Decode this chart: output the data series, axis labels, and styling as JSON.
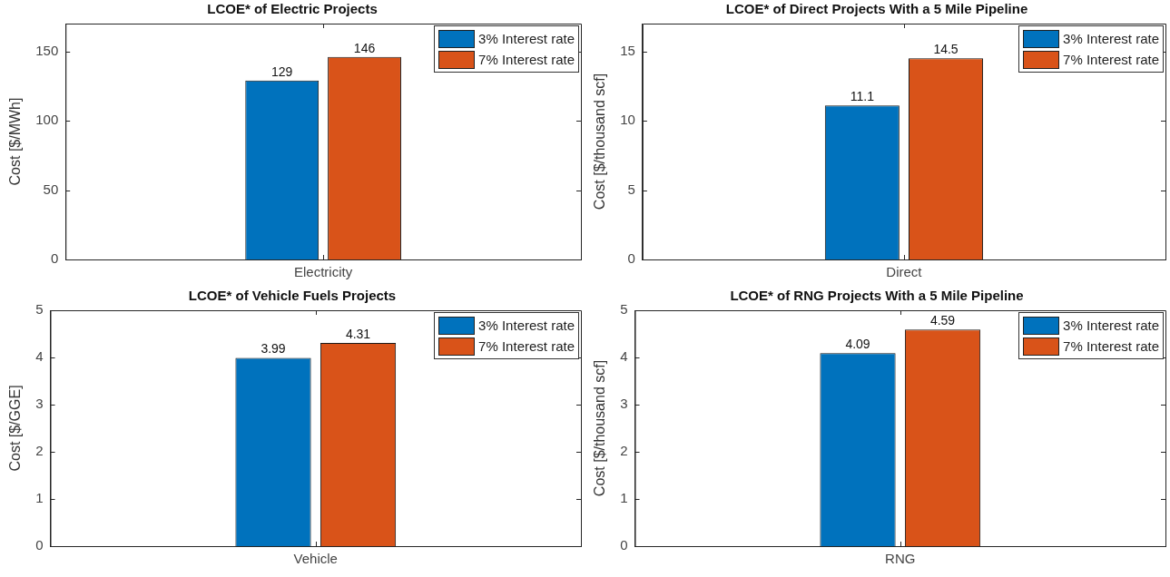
{
  "chart_data": [
    {
      "type": "bar",
      "title": "LCOE* of Electric Projects",
      "ylabel": "Cost [$/MWh]",
      "categories": [
        "Electricity"
      ],
      "series": [
        {
          "name": "3% Interest rate",
          "color": "#0072bd",
          "values": [
            129
          ]
        },
        {
          "name": "7% Interest rate",
          "color": "#d95319",
          "values": [
            146
          ]
        }
      ],
      "ylim": [
        0,
        170
      ],
      "yticks": [
        0,
        50,
        100,
        150
      ],
      "data_labels": true,
      "grid": false,
      "legend": "top right"
    },
    {
      "type": "bar",
      "title": "LCOE* of Direct Projects With a 5 Mile Pipeline",
      "ylabel": "Cost [$/thousand scf]",
      "categories": [
        "Direct"
      ],
      "series": [
        {
          "name": "3% Interest rate",
          "color": "#0072bd",
          "values": [
            11.1
          ]
        },
        {
          "name": "7% Interest rate",
          "color": "#d95319",
          "values": [
            14.5
          ]
        }
      ],
      "ylim": [
        0,
        17
      ],
      "yticks": [
        0,
        5,
        10,
        15
      ],
      "data_labels": true,
      "grid": false,
      "legend": "top right"
    },
    {
      "type": "bar",
      "title": "LCOE* of Vehicle Fuels Projects",
      "ylabel": "Cost [$/GGE]",
      "categories": [
        "Vehicle"
      ],
      "series": [
        {
          "name": "3% Interest rate",
          "color": "#0072bd",
          "values": [
            3.99
          ]
        },
        {
          "name": "7% Interest rate",
          "color": "#d95319",
          "values": [
            4.31
          ]
        }
      ],
      "ylim": [
        0,
        5
      ],
      "yticks": [
        0,
        1,
        2,
        3,
        4,
        5
      ],
      "data_labels": true,
      "grid": false,
      "legend": "top right"
    },
    {
      "type": "bar",
      "title": "LCOE* of RNG Projects With a 5 Mile Pipeline",
      "ylabel": "Cost [$/thousand scf]",
      "categories": [
        "RNG"
      ],
      "series": [
        {
          "name": "3% Interest rate",
          "color": "#0072bd",
          "values": [
            4.09
          ]
        },
        {
          "name": "7% Interest rate",
          "color": "#d95319",
          "values": [
            4.59
          ]
        }
      ],
      "ylim": [
        0,
        5
      ],
      "yticks": [
        0,
        1,
        2,
        3,
        4,
        5
      ],
      "data_labels": true,
      "grid": false,
      "legend": "top right"
    }
  ]
}
